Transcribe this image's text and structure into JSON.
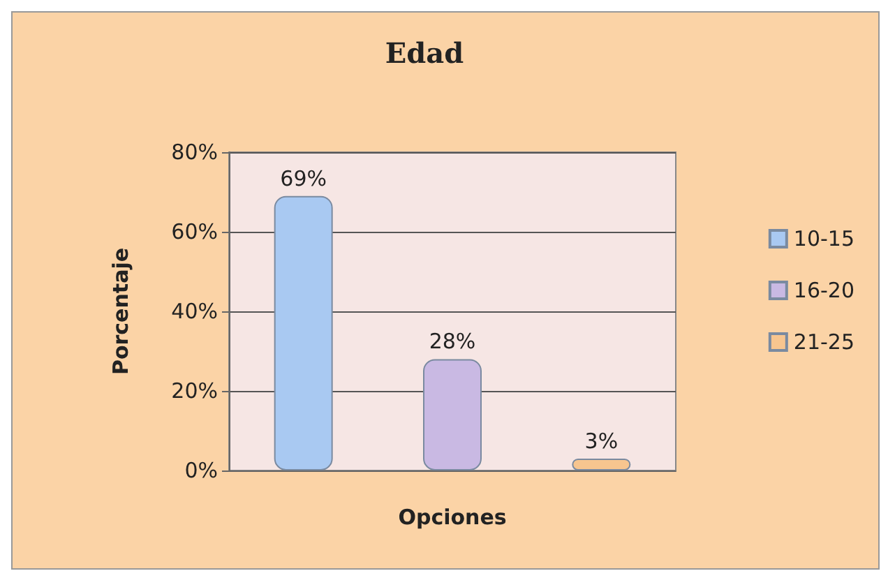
{
  "chart_data": {
    "type": "bar",
    "title": "Edad",
    "xlabel": "Opciones",
    "ylabel": "Porcentaje",
    "categories": [
      null,
      null,
      null
    ],
    "series": [
      {
        "name": "10-15",
        "color": "#a9c9f2",
        "values": [
          69,
          null,
          null
        ],
        "value_labels": [
          "69%",
          null,
          null
        ]
      },
      {
        "name": "16-20",
        "color": "#c9b9e3",
        "values": [
          null,
          28,
          null
        ],
        "value_labels": [
          null,
          "28%",
          null
        ]
      },
      {
        "name": "21-25",
        "color": "#f7c58f",
        "values": [
          null,
          null,
          3
        ],
        "value_labels": [
          null,
          null,
          "3%"
        ]
      }
    ],
    "ylim": [
      0,
      80
    ],
    "yticks": [
      {
        "value": 0,
        "label": "0%"
      },
      {
        "value": 20,
        "label": "20%"
      },
      {
        "value": 40,
        "label": "40%"
      },
      {
        "value": 60,
        "label": "60%"
      },
      {
        "value": 80,
        "label": "80%"
      }
    ],
    "grid": "y",
    "legend": "right"
  }
}
